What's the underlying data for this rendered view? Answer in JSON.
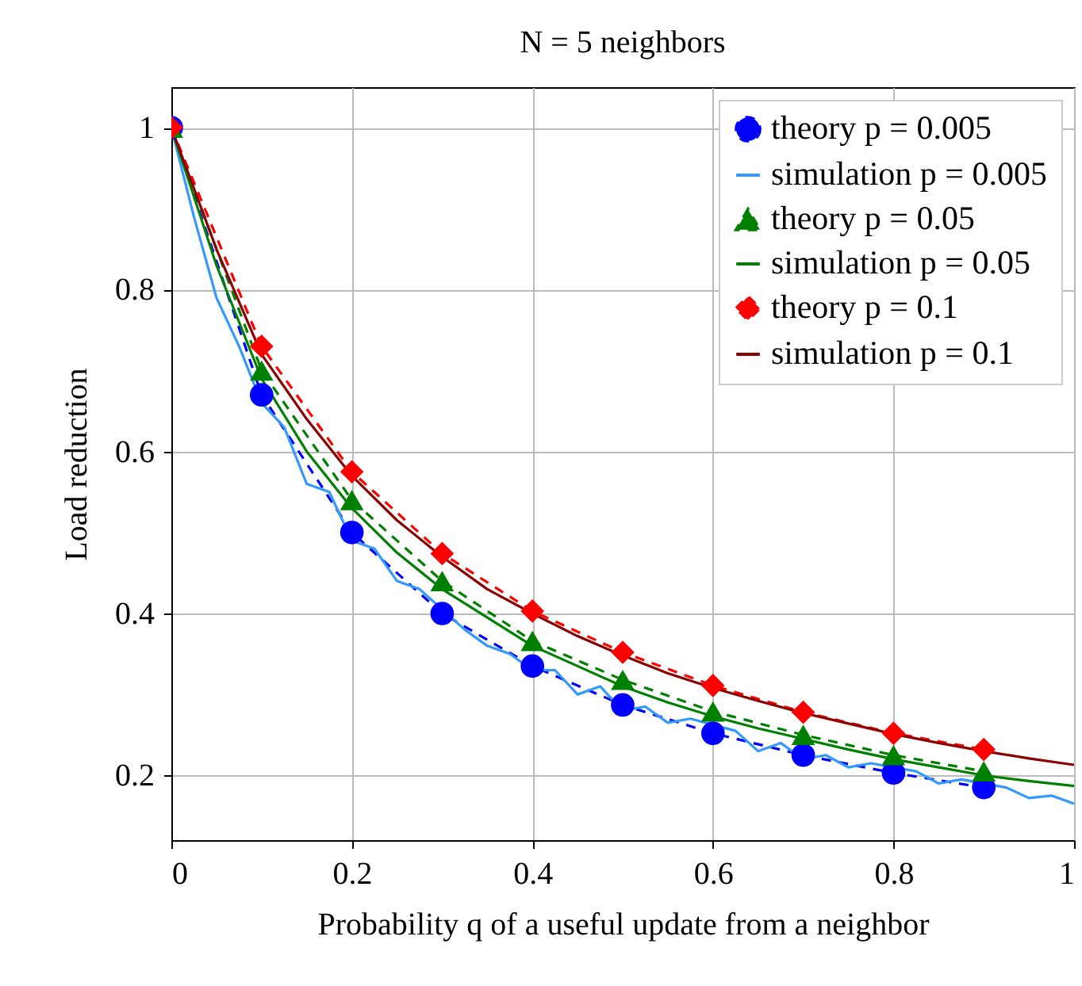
{
  "chart_data": {
    "type": "line",
    "title": "N = 5 neighbors",
    "xlabel": "Probability q of a useful update from a neighbor",
    "ylabel": "Load reduction",
    "xlim": [
      0,
      1
    ],
    "ylim": [
      0.12,
      1.05
    ],
    "xticks": [
      0,
      0.2,
      0.4,
      0.6,
      0.8,
      1
    ],
    "yticks": [
      0.2,
      0.4,
      0.6,
      0.8,
      1
    ],
    "grid": true,
    "legend": "top right",
    "series": [
      {
        "name": "theory p = 0.005",
        "color": "#0000ff",
        "marker": "circle",
        "line_style": "dashed",
        "x": [
          0,
          0.1,
          0.2,
          0.3,
          0.4,
          0.5,
          0.6,
          0.7,
          0.8,
          0.9
        ],
        "values": [
          1,
          0.67,
          0.5,
          0.4,
          0.335,
          0.287,
          0.252,
          0.225,
          0.203,
          0.185
        ]
      },
      {
        "name": "simulation p = 0.005",
        "color": "#3399ff",
        "marker": "none",
        "line_style": "solid",
        "x": [
          0,
          0.025,
          0.05,
          0.075,
          0.1,
          0.125,
          0.15,
          0.175,
          0.2,
          0.225,
          0.25,
          0.275,
          0.325,
          0.35,
          0.375,
          0.4,
          0.425,
          0.45,
          0.475,
          0.5,
          0.525,
          0.55,
          0.575,
          0.625,
          0.65,
          0.675,
          0.7,
          0.725,
          0.75,
          0.775,
          0.825,
          0.85,
          0.875,
          0.925,
          0.95,
          0.975,
          1
        ],
        "values": [
          1,
          0.89,
          0.79,
          0.73,
          0.66,
          0.63,
          0.56,
          0.55,
          0.49,
          0.48,
          0.44,
          0.43,
          0.38,
          0.36,
          0.35,
          0.33,
          0.33,
          0.3,
          0.31,
          0.28,
          0.285,
          0.265,
          0.27,
          0.255,
          0.23,
          0.24,
          0.22,
          0.225,
          0.21,
          0.215,
          0.205,
          0.19,
          0.195,
          0.185,
          0.172,
          0.175,
          0.165
        ]
      },
      {
        "name": "theory p = 0.05",
        "color": "#008000",
        "marker": "triangle",
        "line_style": "dashed",
        "x": [
          0,
          0.1,
          0.2,
          0.3,
          0.4,
          0.5,
          0.6,
          0.7,
          0.8,
          0.9
        ],
        "values": [
          1,
          0.7,
          0.54,
          0.44,
          0.366,
          0.318,
          0.279,
          0.25,
          0.225,
          0.205
        ]
      },
      {
        "name": "simulation p = 0.05",
        "color": "#008000",
        "marker": "none",
        "line_style": "solid",
        "x": [
          0,
          0.05,
          0.1,
          0.15,
          0.2,
          0.25,
          0.3,
          0.35,
          0.4,
          0.45,
          0.5,
          0.55,
          0.6,
          0.65,
          0.7,
          0.75,
          0.8,
          0.85,
          0.9,
          0.95,
          1
        ],
        "values": [
          1,
          0.83,
          0.69,
          0.6,
          0.53,
          0.475,
          0.43,
          0.395,
          0.36,
          0.335,
          0.31,
          0.29,
          0.273,
          0.258,
          0.245,
          0.232,
          0.22,
          0.21,
          0.2,
          0.193,
          0.187
        ]
      },
      {
        "name": "theory p = 0.1",
        "color": "#ff0000",
        "marker": "diamond",
        "line_style": "dashed",
        "x": [
          0,
          0.1,
          0.2,
          0.3,
          0.4,
          0.5,
          0.6,
          0.7,
          0.8,
          0.9
        ],
        "values": [
          1,
          0.73,
          0.575,
          0.474,
          0.403,
          0.352,
          0.311,
          0.278,
          0.252,
          0.232
        ]
      },
      {
        "name": "simulation p = 0.1",
        "color": "#8b0000",
        "marker": "none",
        "line_style": "solid",
        "x": [
          0,
          0.05,
          0.1,
          0.15,
          0.2,
          0.25,
          0.3,
          0.35,
          0.4,
          0.45,
          0.5,
          0.55,
          0.6,
          0.65,
          0.7,
          0.75,
          0.8,
          0.85,
          0.9,
          0.95,
          1
        ],
        "values": [
          1,
          0.85,
          0.72,
          0.64,
          0.57,
          0.515,
          0.47,
          0.43,
          0.4,
          0.372,
          0.348,
          0.326,
          0.308,
          0.292,
          0.277,
          0.264,
          0.251,
          0.24,
          0.23,
          0.221,
          0.213
        ]
      }
    ]
  }
}
